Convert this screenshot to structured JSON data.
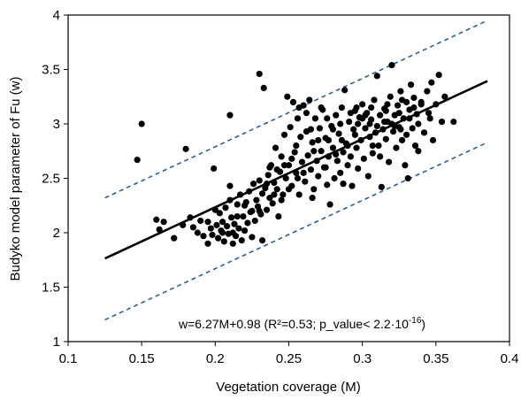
{
  "chart_data": {
    "type": "scatter",
    "xlabel": "Vegetation coverage (M)",
    "ylabel": "Budyko model parameter of Fu (w)",
    "xlim": [
      0.1,
      0.4
    ],
    "ylim": [
      1,
      4
    ],
    "xticks": [
      "0.1",
      "0.15",
      "0.2",
      "0.25",
      "0.3",
      "0.35",
      "0.4"
    ],
    "yticks": [
      "1",
      "1.5",
      "2",
      "2.5",
      "3",
      "3.5",
      "4"
    ],
    "grid": false,
    "legend": "none",
    "annotation": {
      "main": "w=6.27M+0.98 (R²=0.53; p_value< 2.2·10",
      "superscript": "-16",
      "suffix": ")"
    },
    "fit_line": {
      "slope": 6.27,
      "intercept": 0.98,
      "x_range": [
        0.125,
        0.385
      ],
      "color": "#000000"
    },
    "bounds": [
      {
        "x": [
          0.125,
          0.385
        ],
        "y": [
          2.32,
          3.95
        ],
        "color": "#2e5f8f"
      },
      {
        "x": [
          0.125,
          0.385
        ],
        "y": [
          1.2,
          2.83
        ],
        "color": "#2e5f8f"
      }
    ],
    "marker_color": "#000000",
    "points": [
      [
        0.147,
        2.67
      ],
      [
        0.15,
        3.0
      ],
      [
        0.16,
        2.12
      ],
      [
        0.162,
        2.03
      ],
      [
        0.165,
        2.1
      ],
      [
        0.172,
        1.95
      ],
      [
        0.178,
        2.07
      ],
      [
        0.18,
        2.77
      ],
      [
        0.183,
        2.14
      ],
      [
        0.185,
        2.05
      ],
      [
        0.188,
        2.0
      ],
      [
        0.19,
        2.11
      ],
      [
        0.192,
        1.97
      ],
      [
        0.195,
        2.1
      ],
      [
        0.197,
        2.04
      ],
      [
        0.198,
        1.98
      ],
      [
        0.199,
        2.59
      ],
      [
        0.2,
        2.21
      ],
      [
        0.201,
        2.07
      ],
      [
        0.202,
        1.95
      ],
      [
        0.203,
        2.18
      ],
      [
        0.204,
        2.02
      ],
      [
        0.205,
        2.1
      ],
      [
        0.206,
        1.92
      ],
      [
        0.207,
        2.23
      ],
      [
        0.208,
        2.06
      ],
      [
        0.209,
        1.99
      ],
      [
        0.21,
        3.08
      ],
      [
        0.21,
        2.43
      ],
      [
        0.211,
        2.14
      ],
      [
        0.212,
        2.0
      ],
      [
        0.213,
        2.08
      ],
      [
        0.214,
        1.97
      ],
      [
        0.215,
        2.26
      ],
      [
        0.216,
        2.04
      ],
      [
        0.217,
        2.35
      ],
      [
        0.218,
        1.93
      ],
      [
        0.219,
        2.15
      ],
      [
        0.22,
        2.02
      ],
      [
        0.221,
        2.28
      ],
      [
        0.222,
        2.09
      ],
      [
        0.223,
        2.38
      ],
      [
        0.224,
        2.19
      ],
      [
        0.225,
        1.96
      ],
      [
        0.226,
        2.45
      ],
      [
        0.227,
        2.11
      ],
      [
        0.228,
        2.3
      ],
      [
        0.229,
        2.24
      ],
      [
        0.23,
        2.48
      ],
      [
        0.23,
        3.46
      ],
      [
        0.231,
        2.17
      ],
      [
        0.232,
        2.36
      ],
      [
        0.233,
        3.33
      ],
      [
        0.234,
        2.41
      ],
      [
        0.235,
        2.21
      ],
      [
        0.236,
        2.53
      ],
      [
        0.237,
        2.32
      ],
      [
        0.238,
        2.62
      ],
      [
        0.239,
        2.27
      ],
      [
        0.24,
        2.46
      ],
      [
        0.241,
        2.78
      ],
      [
        0.242,
        2.4
      ],
      [
        0.243,
        2.15
      ],
      [
        0.244,
        2.56
      ],
      [
        0.245,
        2.7
      ],
      [
        0.246,
        2.35
      ],
      [
        0.247,
        2.9
      ],
      [
        0.248,
        2.5
      ],
      [
        0.249,
        3.25
      ],
      [
        0.25,
        2.62
      ],
      [
        0.251,
        2.97
      ],
      [
        0.252,
        2.43
      ],
      [
        0.253,
        3.2
      ],
      [
        0.254,
        2.74
      ],
      [
        0.255,
        2.55
      ],
      [
        0.256,
        3.05
      ],
      [
        0.257,
        2.35
      ],
      [
        0.258,
        2.88
      ],
      [
        0.259,
        2.65
      ],
      [
        0.26,
        3.17
      ],
      [
        0.261,
        2.47
      ],
      [
        0.262,
        2.93
      ],
      [
        0.263,
        2.71
      ],
      [
        0.264,
        3.22
      ],
      [
        0.265,
        2.58
      ],
      [
        0.266,
        2.83
      ],
      [
        0.267,
        2.4
      ],
      [
        0.268,
        3.05
      ],
      [
        0.269,
        2.66
      ],
      [
        0.27,
        2.52
      ],
      [
        0.271,
        2.96
      ],
      [
        0.272,
        2.75
      ],
      [
        0.273,
        3.13
      ],
      [
        0.274,
        2.6
      ],
      [
        0.275,
        2.87
      ],
      [
        0.276,
        2.44
      ],
      [
        0.277,
        2.7
      ],
      [
        0.278,
        2.26
      ],
      [
        0.279,
        2.98
      ],
      [
        0.28,
        2.78
      ],
      [
        0.281,
        2.5
      ],
      [
        0.282,
        3.08
      ],
      [
        0.283,
        2.66
      ],
      [
        0.284,
        2.91
      ],
      [
        0.285,
        2.55
      ],
      [
        0.286,
        3.15
      ],
      [
        0.287,
        2.74
      ],
      [
        0.288,
        3.31
      ],
      [
        0.289,
        2.82
      ],
      [
        0.29,
        2.62
      ],
      [
        0.291,
        3.02
      ],
      [
        0.292,
        2.7
      ],
      [
        0.293,
        2.43
      ],
      [
        0.294,
        2.95
      ],
      [
        0.295,
        3.12
      ],
      [
        0.296,
        2.78
      ],
      [
        0.297,
        2.59
      ],
      [
        0.298,
        3.06
      ],
      [
        0.299,
        2.85
      ],
      [
        0.3,
        3.18
      ],
      [
        0.301,
        2.68
      ],
      [
        0.302,
        2.96
      ],
      [
        0.303,
        3.1
      ],
      [
        0.304,
        2.52
      ],
      [
        0.305,
        2.88
      ],
      [
        0.306,
        3.04
      ],
      [
        0.307,
        2.73
      ],
      [
        0.308,
        3.22
      ],
      [
        0.309,
        2.92
      ],
      [
        0.31,
        3.44
      ],
      [
        0.311,
        2.8
      ],
      [
        0.312,
        3.08
      ],
      [
        0.313,
        2.42
      ],
      [
        0.314,
        2.95
      ],
      [
        0.315,
        3.14
      ],
      [
        0.316,
        2.86
      ],
      [
        0.317,
        3.02
      ],
      [
        0.318,
        2.65
      ],
      [
        0.319,
        3.25
      ],
      [
        0.32,
        3.54
      ],
      [
        0.321,
        2.93
      ],
      [
        0.322,
        3.08
      ],
      [
        0.323,
        2.78
      ],
      [
        0.324,
        3.17
      ],
      [
        0.325,
        2.97
      ],
      [
        0.326,
        3.3
      ],
      [
        0.327,
        2.85
      ],
      [
        0.328,
        3.05
      ],
      [
        0.329,
        2.62
      ],
      [
        0.33,
        3.2
      ],
      [
        0.331,
        2.5
      ],
      [
        0.332,
        3.13
      ],
      [
        0.333,
        3.36
      ],
      [
        0.334,
        2.96
      ],
      [
        0.335,
        3.24
      ],
      [
        0.336,
        2.8
      ],
      [
        0.337,
        3.09
      ],
      [
        0.338,
        3.0
      ],
      [
        0.34,
        3.18
      ],
      [
        0.342,
        2.92
      ],
      [
        0.344,
        3.3
      ],
      [
        0.346,
        3.05
      ],
      [
        0.348,
        2.85
      ],
      [
        0.35,
        3.18
      ],
      [
        0.352,
        3.45
      ],
      [
        0.354,
        3.02
      ],
      [
        0.356,
        3.25
      ],
      [
        0.362,
        3.02
      ],
      [
        0.205,
        2.0
      ],
      [
        0.215,
        2.15
      ],
      [
        0.225,
        2.2
      ],
      [
        0.235,
        2.45
      ],
      [
        0.245,
        2.3
      ],
      [
        0.255,
        2.8
      ],
      [
        0.265,
        2.95
      ],
      [
        0.275,
        2.6
      ],
      [
        0.285,
        3.0
      ],
      [
        0.295,
        2.9
      ],
      [
        0.305,
        3.0
      ],
      [
        0.315,
        3.02
      ],
      [
        0.325,
        3.1
      ],
      [
        0.335,
        3.15
      ],
      [
        0.345,
        3.1
      ],
      [
        0.21,
        2.3
      ],
      [
        0.22,
        2.25
      ],
      [
        0.23,
        2.2
      ],
      [
        0.24,
        2.35
      ],
      [
        0.25,
        2.4
      ],
      [
        0.26,
        2.55
      ],
      [
        0.27,
        2.85
      ],
      [
        0.28,
        2.95
      ],
      [
        0.29,
        2.8
      ],
      [
        0.3,
        3.05
      ],
      [
        0.31,
        2.98
      ],
      [
        0.32,
        3.0
      ],
      [
        0.33,
        2.9
      ],
      [
        0.34,
        3.2
      ],
      [
        0.195,
        1.9
      ],
      [
        0.212,
        1.9
      ],
      [
        0.232,
        1.93
      ],
      [
        0.242,
        2.58
      ],
      [
        0.252,
        2.68
      ],
      [
        0.262,
        3.1
      ],
      [
        0.272,
        3.15
      ],
      [
        0.282,
        2.72
      ],
      [
        0.292,
        3.1
      ],
      [
        0.302,
        3.08
      ],
      [
        0.312,
        2.7
      ],
      [
        0.322,
        2.98
      ],
      [
        0.332,
        3.05
      ],
      [
        0.256,
        2.5
      ],
      [
        0.266,
        2.32
      ],
      [
        0.276,
        3.05
      ],
      [
        0.286,
        2.85
      ],
      [
        0.296,
        3.15
      ],
      [
        0.306,
        3.15
      ],
      [
        0.316,
        3.12
      ],
      [
        0.326,
        2.95
      ],
      [
        0.237,
        2.6
      ],
      [
        0.247,
        2.62
      ],
      [
        0.257,
        3.15
      ],
      [
        0.267,
        2.75
      ],
      [
        0.277,
        2.85
      ],
      [
        0.287,
        2.45
      ],
      [
        0.297,
        3.0
      ],
      [
        0.307,
        2.8
      ],
      [
        0.317,
        3.18
      ],
      [
        0.327,
        3.22
      ],
      [
        0.347,
        3.38
      ],
      [
        0.338,
        2.75
      ]
    ]
  }
}
